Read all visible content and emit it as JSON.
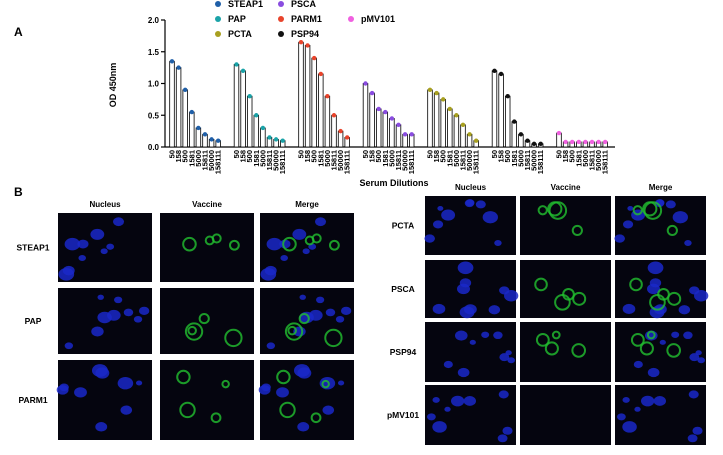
{
  "chart_data": {
    "type": "bar",
    "panel_label": "A",
    "ylabel": "OD 450nm",
    "xlabel": "Serum Dilutions",
    "categories": [
      "50",
      "158",
      "500",
      "1581",
      "5000",
      "15811",
      "50000",
      "158111"
    ],
    "ylim": [
      0,
      2
    ],
    "yticks": [
      {
        "value": 0,
        "label": "0.0"
      },
      0.5,
      {
        "value": 1,
        "label": "1.0"
      },
      1.5,
      {
        "value": 2,
        "label": "2.0"
      }
    ],
    "series": [
      {
        "name": "STEAP1",
        "color": "#1f5fa8",
        "values": [
          1.35,
          1.25,
          0.9,
          0.55,
          0.3,
          0.2,
          0.12,
          0.1
        ]
      },
      {
        "name": "PAP",
        "color": "#1ba3a8",
        "values": [
          1.3,
          1.2,
          0.8,
          0.5,
          0.3,
          0.15,
          0.12,
          0.1
        ]
      },
      {
        "name": "PARM1",
        "color": "#e8442c",
        "values": [
          1.65,
          1.6,
          1.4,
          1.15,
          0.8,
          0.5,
          0.25,
          0.15
        ]
      },
      {
        "name": "PSCA",
        "color": "#8a4de0",
        "values": [
          1.0,
          0.85,
          0.6,
          0.55,
          0.45,
          0.35,
          0.2,
          0.2
        ]
      },
      {
        "name": "PCTA",
        "color": "#a8a020",
        "values": [
          0.9,
          0.85,
          0.75,
          0.6,
          0.5,
          0.35,
          0.2,
          0.1
        ]
      },
      {
        "name": "PSP94",
        "color": "#111111",
        "values": [
          1.2,
          1.15,
          0.8,
          0.4,
          0.2,
          0.1,
          0.05,
          0.05
        ]
      },
      {
        "name": "pMV101",
        "color": "#f060e0",
        "values": [
          0.22,
          0.08,
          0.08,
          0.08,
          0.08,
          0.08,
          0.08,
          0.08
        ]
      }
    ]
  },
  "panel_b": {
    "label": "B",
    "left": {
      "columns": [
        "Nucleus",
        "Vaccine",
        "Merge"
      ],
      "rows": [
        "STEAP1",
        "PAP",
        "PARM1"
      ]
    },
    "right": {
      "columns": [
        "Nucleus",
        "Vaccine",
        "Merge"
      ],
      "rows": [
        "PCTA",
        "PSCA",
        "PSP94",
        "pMV101"
      ]
    }
  }
}
